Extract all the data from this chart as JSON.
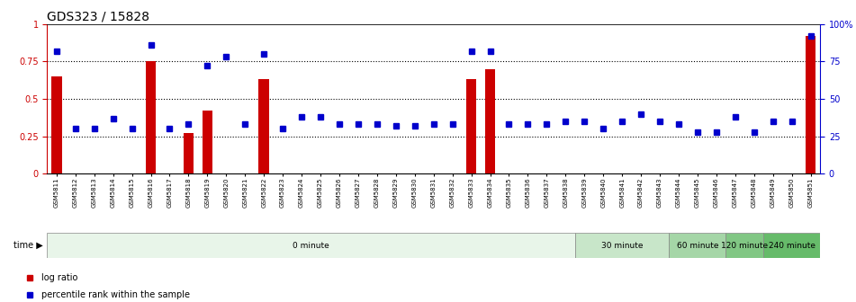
{
  "title": "GDS323 / 15828",
  "samples": [
    "GSM5811",
    "GSM5812",
    "GSM5813",
    "GSM5814",
    "GSM5815",
    "GSM5816",
    "GSM5817",
    "GSM5818",
    "GSM5819",
    "GSM5820",
    "GSM5821",
    "GSM5822",
    "GSM5823",
    "GSM5824",
    "GSM5825",
    "GSM5826",
    "GSM5827",
    "GSM5828",
    "GSM5829",
    "GSM5830",
    "GSM5831",
    "GSM5832",
    "GSM5833",
    "GSM5834",
    "GSM5835",
    "GSM5836",
    "GSM5837",
    "GSM5838",
    "GSM5839",
    "GSM5840",
    "GSM5841",
    "GSM5842",
    "GSM5843",
    "GSM5844",
    "GSM5845",
    "GSM5846",
    "GSM5847",
    "GSM5848",
    "GSM5849",
    "GSM5850",
    "GSM5851"
  ],
  "log_ratio": [
    0.65,
    0.0,
    0.0,
    0.0,
    0.0,
    0.75,
    0.0,
    0.27,
    0.42,
    0.0,
    0.0,
    0.63,
    0.0,
    0.0,
    0.0,
    0.0,
    0.0,
    0.0,
    0.0,
    0.0,
    0.0,
    0.0,
    0.63,
    0.7,
    0.0,
    0.0,
    0.0,
    0.0,
    0.0,
    0.0,
    0.0,
    0.0,
    0.0,
    0.0,
    0.0,
    0.0,
    0.0,
    0.0,
    0.0,
    0.0,
    0.92
  ],
  "percentile": [
    0.82,
    0.3,
    0.3,
    0.37,
    0.3,
    0.86,
    0.3,
    0.33,
    0.72,
    0.78,
    0.33,
    0.8,
    0.3,
    0.38,
    0.38,
    0.33,
    0.33,
    0.33,
    0.32,
    0.32,
    0.33,
    0.33,
    0.82,
    0.82,
    0.33,
    0.33,
    0.33,
    0.35,
    0.35,
    0.3,
    0.35,
    0.4,
    0.35,
    0.33,
    0.28,
    0.28,
    0.38,
    0.28,
    0.35,
    0.35,
    0.92
  ],
  "time_groups": [
    {
      "label": "0 minute",
      "start": 0,
      "end": 28,
      "color": "#e8f5e9"
    },
    {
      "label": "30 minute",
      "start": 28,
      "end": 33,
      "color": "#c8e6c9"
    },
    {
      "label": "60 minute",
      "start": 33,
      "end": 36,
      "color": "#a5d6a7"
    },
    {
      "label": "120 minute",
      "start": 36,
      "end": 38,
      "color": "#81c784"
    },
    {
      "label": "240 minute",
      "start": 38,
      "end": 41,
      "color": "#66bb6a"
    }
  ],
  "bar_color": "#cc0000",
  "dot_color": "#0000cc",
  "yticks_left": [
    0,
    0.25,
    0.5,
    0.75,
    1.0
  ],
  "yticklabels_left": [
    "0",
    "0.25",
    "0.5",
    "0.75",
    "1"
  ],
  "yticklabels_right": [
    "0",
    "25",
    "50",
    "75",
    "100%"
  ],
  "title_fontsize": 10,
  "legend_labels": [
    "log ratio",
    "percentile rank within the sample"
  ]
}
